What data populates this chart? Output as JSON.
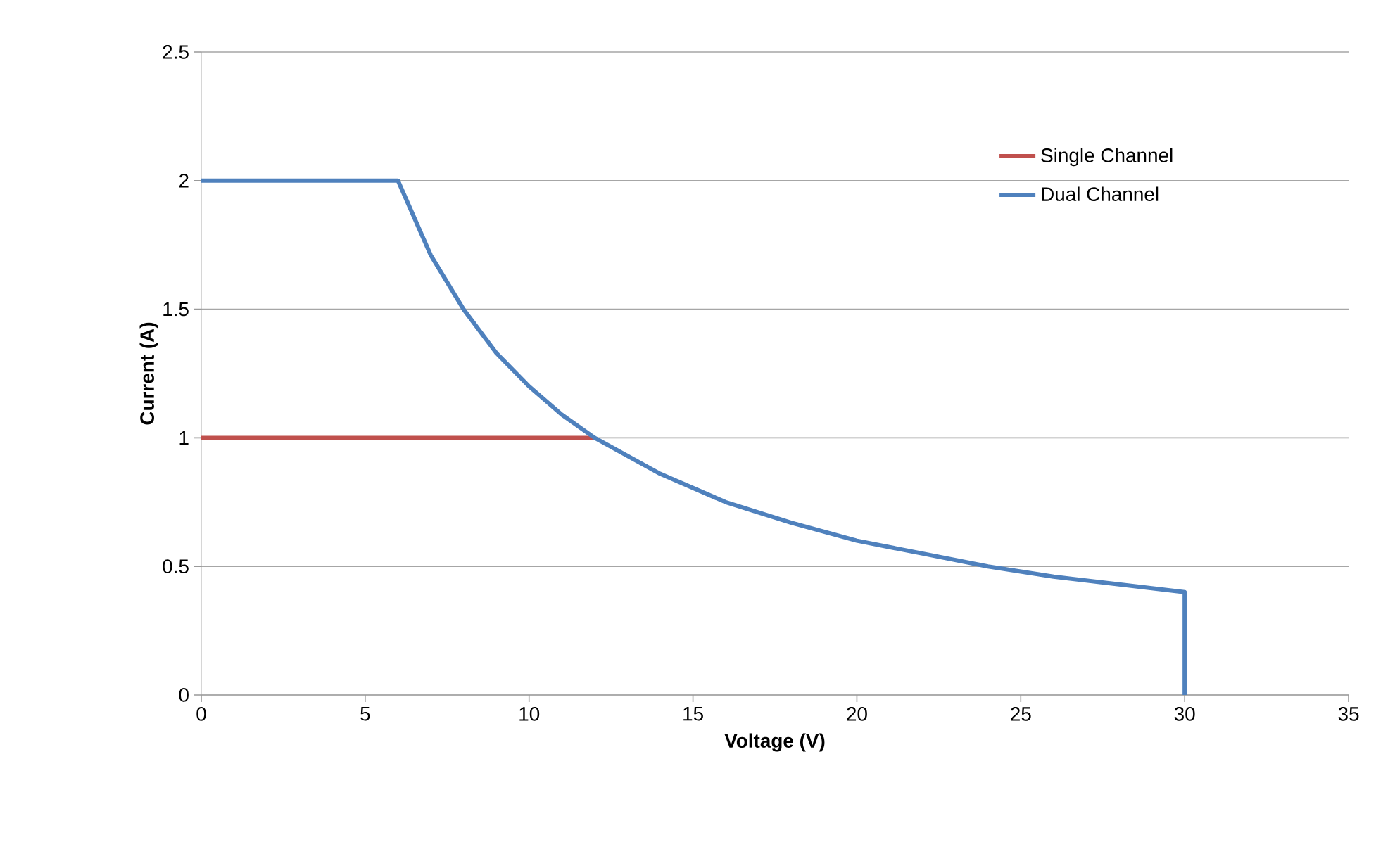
{
  "chart_data": {
    "type": "line",
    "xlabel": "Voltage (V)",
    "ylabel": "Current (A)",
    "xlim": [
      0,
      35
    ],
    "xticks": [
      0,
      5,
      10,
      15,
      20,
      25,
      30,
      35
    ],
    "ylim": [
      0,
      2.5
    ],
    "yticks": [
      0,
      0.5,
      1,
      1.5,
      2,
      2.5
    ],
    "grid": "y",
    "legend": "right",
    "marker": "none",
    "line_style": "solid",
    "series": [
      {
        "name": "Single Channel",
        "color": "#c0504d",
        "x": [
          0,
          12
        ],
        "values": [
          1,
          1
        ]
      },
      {
        "name": "Dual Channel",
        "color": "#4f81bd",
        "x": [
          0,
          6,
          7,
          8,
          9,
          10,
          11,
          12,
          14,
          16,
          18,
          20,
          22,
          24,
          26,
          28,
          30,
          30
        ],
        "values": [
          2,
          2,
          1.71,
          1.5,
          1.33,
          1.2,
          1.09,
          1,
          0.86,
          0.75,
          0.67,
          0.6,
          0.55,
          0.5,
          0.46,
          0.43,
          0.4,
          0
        ]
      }
    ]
  }
}
